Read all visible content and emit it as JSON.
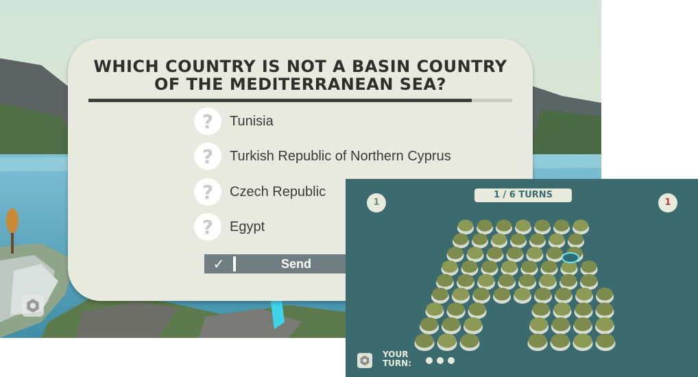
{
  "quiz": {
    "question_line1": "WHICH COUNTRY IS NOT A BASIN COUNTRY",
    "question_line2": "OF THE MEDITERRANEAN SEA?",
    "timer_remaining_fraction": 0.905,
    "answers": [
      {
        "badge": "?",
        "label": "Tunisia"
      },
      {
        "badge": "?",
        "label": "Turkish Republic of Northern Cyprus"
      },
      {
        "badge": "?",
        "label": "Czech Republic"
      },
      {
        "badge": "?",
        "label": "Egypt"
      }
    ],
    "send_check": "✓",
    "send_label": "Send",
    "settings_icon": "gear-icon"
  },
  "board": {
    "turns_label": "1 / 6 TURNS",
    "player_score": "1",
    "opponent_score": "1",
    "your_turn_line1": "YOUR",
    "your_turn_line2": "TURN:",
    "turn_dots": 3,
    "settings_icon": "gear-icon",
    "colors": {
      "water": "#3b6b6f",
      "panel": "#e8eadc",
      "opponent": "#b23b3b",
      "player": "#6a8f74"
    }
  }
}
